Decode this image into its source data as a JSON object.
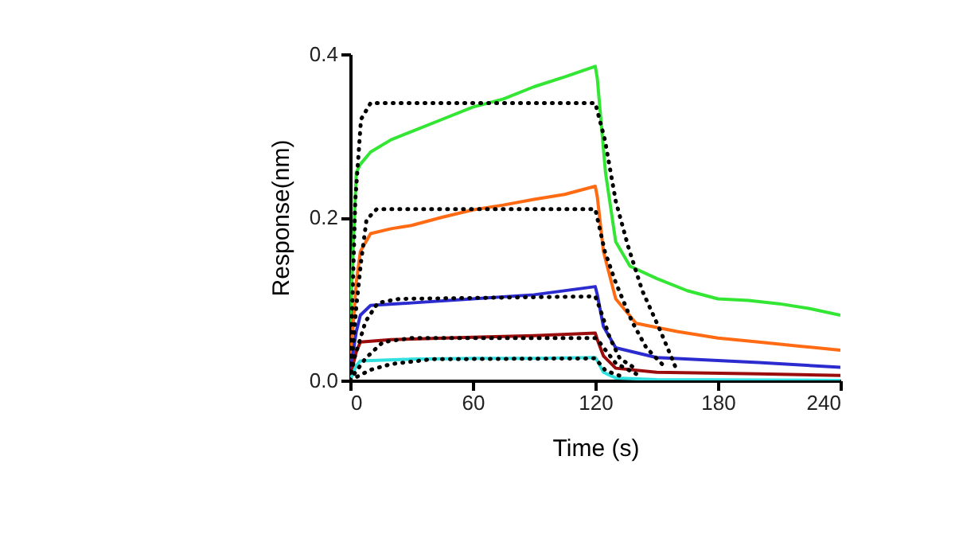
{
  "chart_data": {
    "type": "line",
    "xlabel": "Time (s)",
    "ylabel": "Response(nm)",
    "xlim": [
      0,
      240
    ],
    "ylim": [
      0,
      0.4
    ],
    "xticks": [
      0,
      60,
      120,
      180,
      240
    ],
    "yticks": [
      {
        "value": 0,
        "label": "0.0"
      },
      0.2,
      0.4
    ],
    "grid": false,
    "marker": "none",
    "series": [
      {
        "color": "#33e633",
        "line_style": "solid",
        "x": [
          0,
          3,
          5,
          10,
          20,
          30,
          45,
          60,
          75,
          90,
          105,
          120,
          121,
          125,
          130,
          137,
          150,
          165,
          180,
          195,
          210,
          225,
          240
        ],
        "values": [
          0.07,
          0.255,
          0.265,
          0.28,
          0.295,
          0.305,
          0.32,
          0.335,
          0.345,
          0.36,
          0.372,
          0.385,
          0.37,
          0.255,
          0.17,
          0.14,
          0.125,
          0.11,
          0.1,
          0.098,
          0.094,
          0.088,
          0.08
        ]
      },
      {
        "color": "#ff6a13",
        "line_style": "solid",
        "x": [
          0,
          3,
          5,
          10,
          20,
          30,
          45,
          60,
          75,
          90,
          105,
          120,
          121,
          124,
          130,
          140,
          160,
          180,
          200,
          220,
          240
        ],
        "values": [
          0.02,
          0.12,
          0.158,
          0.18,
          0.186,
          0.19,
          0.2,
          0.209,
          0.215,
          0.222,
          0.228,
          0.238,
          0.225,
          0.158,
          0.1,
          0.07,
          0.06,
          0.052,
          0.047,
          0.042,
          0.037
        ]
      },
      {
        "color": "#2b2bd0",
        "line_style": "solid",
        "x": [
          0,
          3,
          5,
          10,
          30,
          60,
          90,
          120,
          121,
          124,
          130,
          150,
          200,
          240
        ],
        "values": [
          0.01,
          0.06,
          0.08,
          0.092,
          0.095,
          0.1,
          0.105,
          0.115,
          0.105,
          0.066,
          0.04,
          0.028,
          0.022,
          0.016
        ]
      },
      {
        "color": "#9b0d0d",
        "line_style": "solid",
        "x": [
          0,
          3,
          5,
          20,
          60,
          90,
          120,
          121,
          124,
          130,
          150,
          200,
          240
        ],
        "values": [
          0.005,
          0.035,
          0.047,
          0.05,
          0.053,
          0.055,
          0.058,
          0.05,
          0.03,
          0.015,
          0.01,
          0.008,
          0.006
        ]
      },
      {
        "color": "#33e0e0",
        "line_style": "solid",
        "x": [
          0,
          3,
          5,
          30,
          60,
          90,
          120,
          121,
          124,
          130,
          150,
          240
        ],
        "values": [
          0.0,
          0.018,
          0.024,
          0.026,
          0.027,
          0.027,
          0.028,
          0.024,
          0.01,
          0.003,
          0.001,
          0.0
        ]
      },
      {
        "color": "#000000",
        "line_style": "dotted",
        "x": [
          0,
          2.5,
          5.3,
          10,
          15,
          120,
          124.7,
          130,
          136,
          143,
          152,
          160
        ],
        "values": [
          0.0,
          0.22,
          0.32,
          0.34,
          0.34,
          0.34,
          0.295,
          0.22,
          0.165,
          0.11,
          0.06,
          0.012
        ]
      },
      {
        "color": "#000000",
        "line_style": "dotted",
        "x": [
          0,
          3,
          5.3,
          8,
          13,
          120,
          124.7,
          130,
          138,
          145,
          155
        ],
        "values": [
          0.0,
          0.09,
          0.145,
          0.197,
          0.21,
          0.21,
          0.158,
          0.12,
          0.072,
          0.04,
          0.014
        ]
      },
      {
        "color": "#000000",
        "line_style": "dotted",
        "x": [
          0,
          2,
          7.5,
          13.5,
          24,
          120,
          122,
          127,
          132,
          140
        ],
        "values": [
          0.0,
          0.027,
          0.072,
          0.095,
          0.1,
          0.103,
          0.09,
          0.053,
          0.027,
          0.014
        ]
      },
      {
        "color": "#000000",
        "line_style": "dotted",
        "x": [
          0,
          2,
          7.5,
          16,
          30,
          120,
          122,
          130,
          140
        ],
        "values": [
          0.0,
          0.008,
          0.027,
          0.047,
          0.052,
          0.052,
          0.047,
          0.021,
          0.008
        ]
      },
      {
        "color": "#000000",
        "line_style": "dotted",
        "x": [
          0,
          3,
          10,
          20,
          40,
          120,
          125,
          135
        ],
        "values": [
          0.0,
          0.004,
          0.013,
          0.02,
          0.026,
          0.027,
          0.012,
          0.003
        ]
      }
    ]
  }
}
